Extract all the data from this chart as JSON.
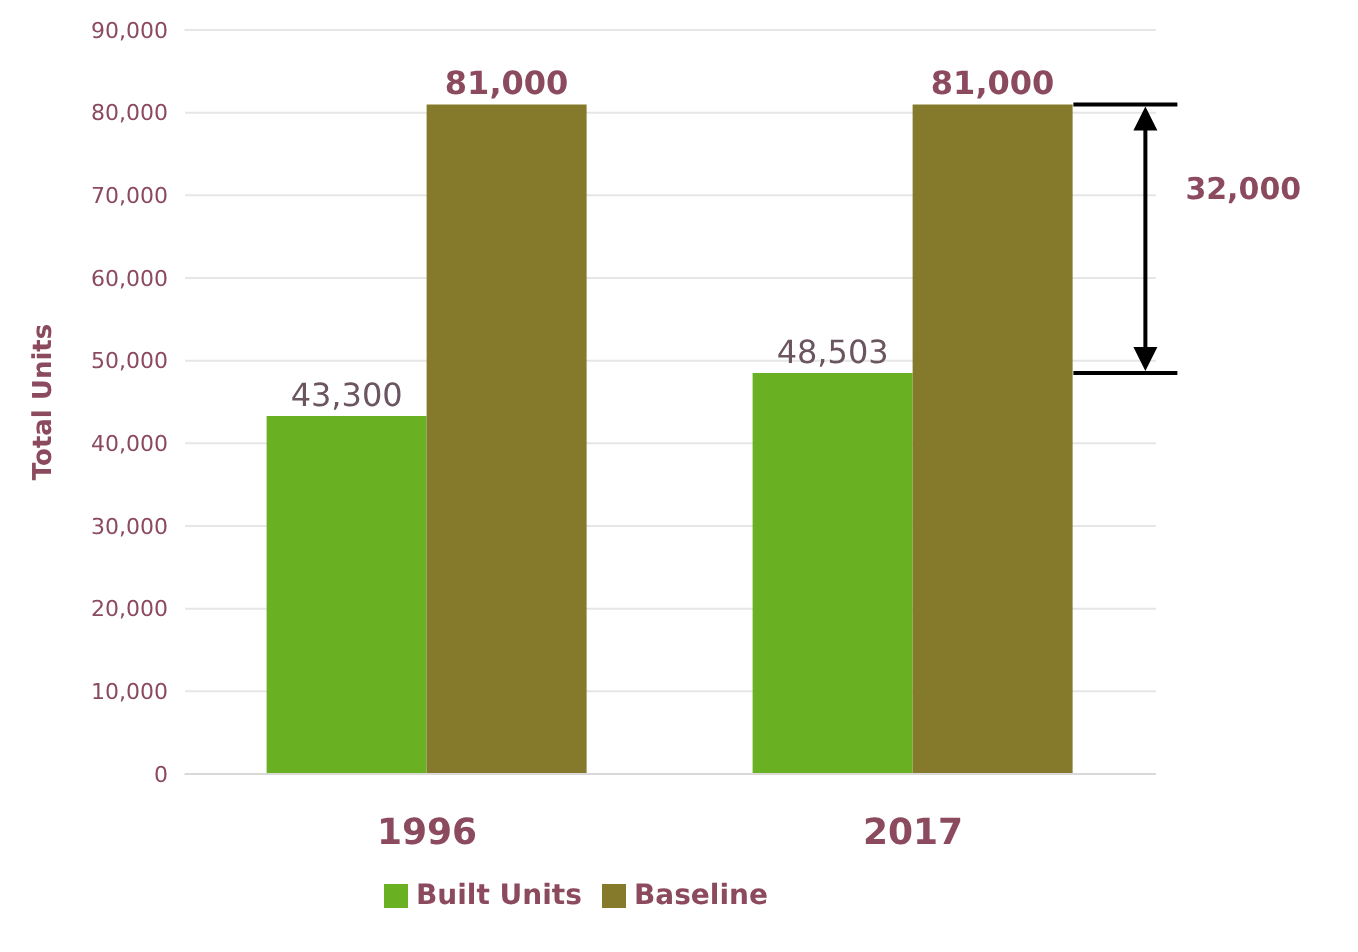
{
  "chart_data": {
    "type": "bar",
    "ylabel": "Total Units",
    "categories": [
      "1996",
      "2017"
    ],
    "series": [
      {
        "name": "Built Units",
        "color": "#6ab023",
        "values": [
          43300,
          48503
        ],
        "value_labels": [
          "43,300",
          "48,503"
        ]
      },
      {
        "name": "Baseline",
        "color": "#857a2c",
        "values": [
          81000,
          81000
        ],
        "value_labels": [
          "81,000",
          "81,000"
        ]
      }
    ],
    "ylim": [
      0,
      90000
    ],
    "yticks": [
      {
        "value": 0,
        "label": "0"
      },
      {
        "value": 10000,
        "label": "10,000"
      },
      {
        "value": 20000,
        "label": "20,000"
      },
      {
        "value": 30000,
        "label": "30,000"
      },
      {
        "value": 40000,
        "label": "40,000"
      },
      {
        "value": 50000,
        "label": "50,000"
      },
      {
        "value": 60000,
        "label": "60,000"
      },
      {
        "value": 70000,
        "label": "70,000"
      },
      {
        "value": 80000,
        "label": "80,000"
      },
      {
        "value": 90000,
        "label": "90,000"
      }
    ],
    "grid": "y",
    "legend": "bottom",
    "annotations": [
      "32,000"
    ]
  }
}
